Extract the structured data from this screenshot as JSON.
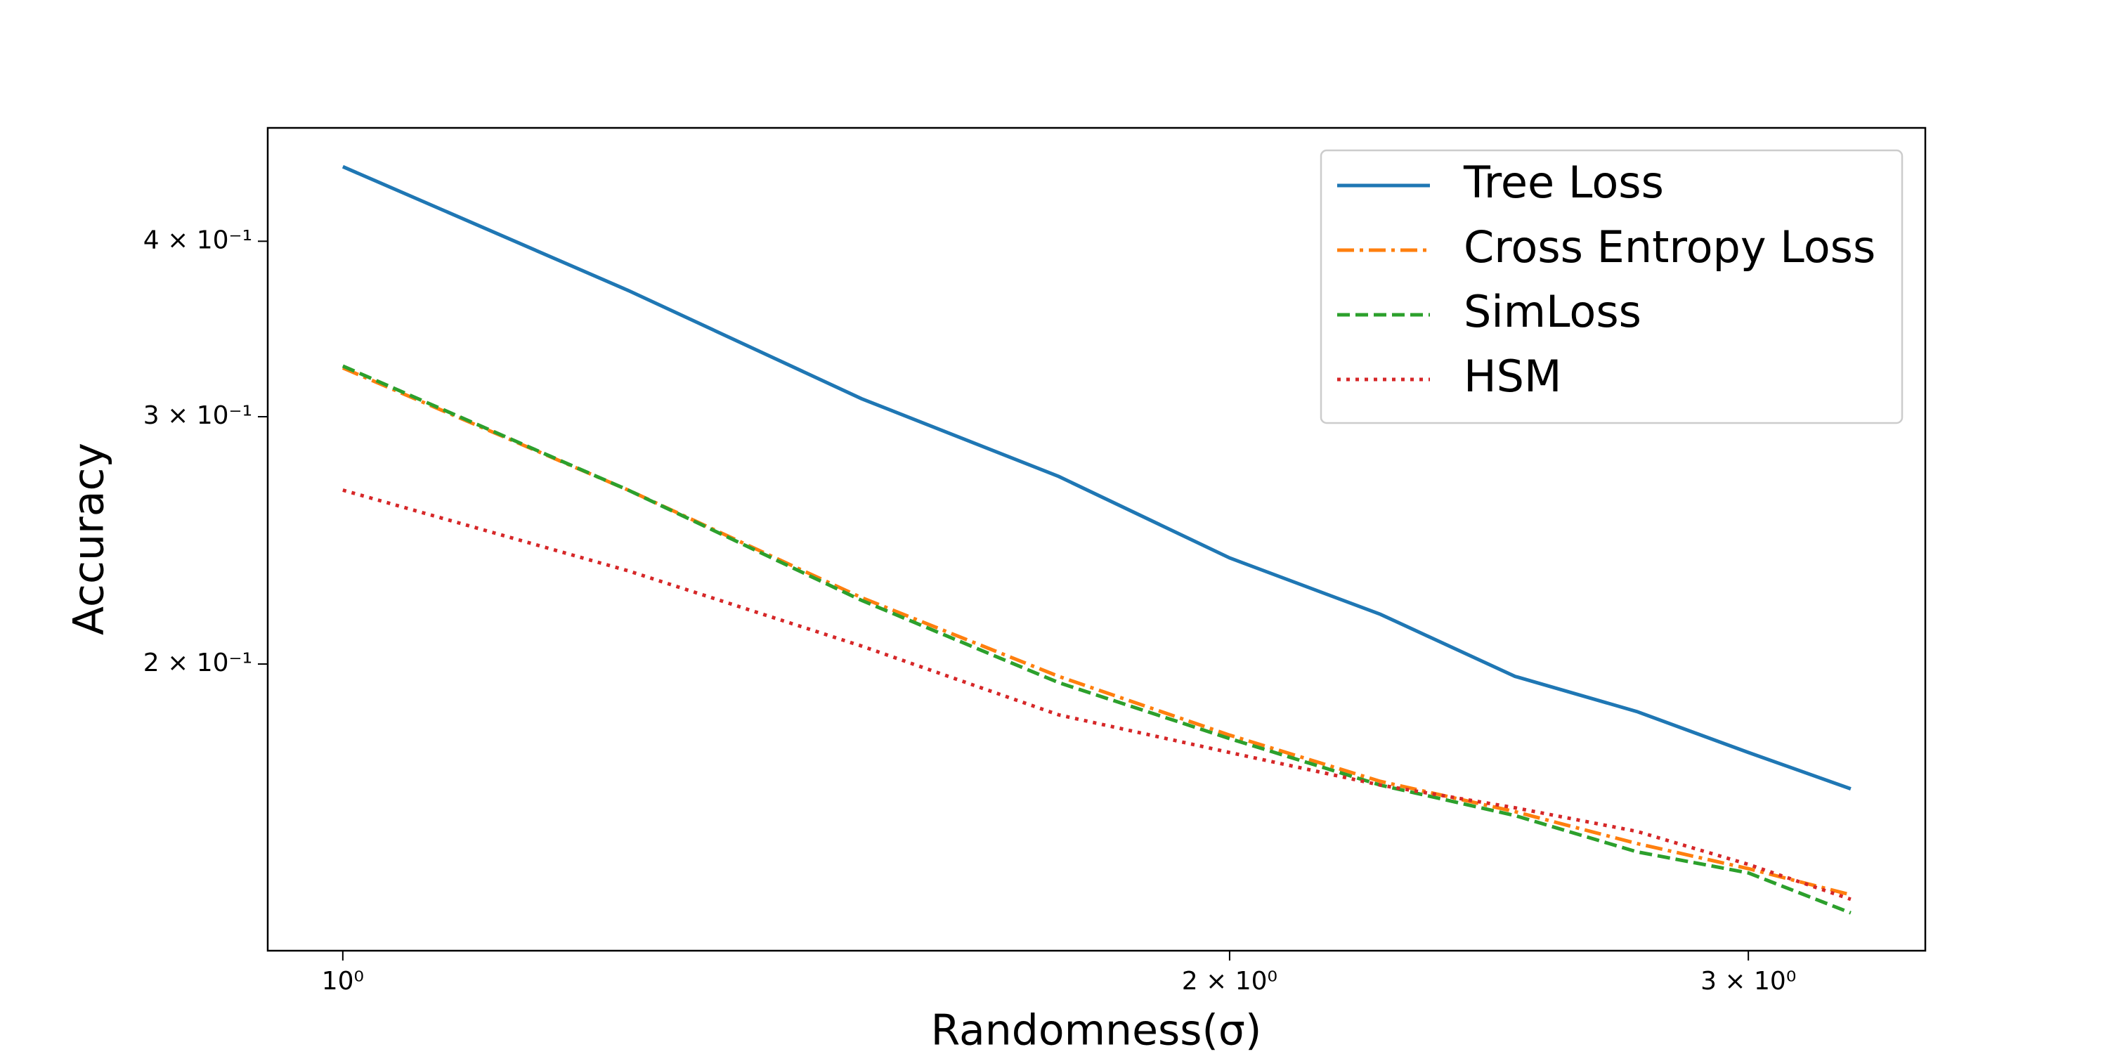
{
  "chart_data": {
    "type": "line",
    "xlabel": "Randomness(σ)",
    "ylabel": "Accuracy",
    "xscale": "log",
    "yscale": "log",
    "x": [
      1.0,
      1.25,
      1.5,
      1.75,
      2.0,
      2.25,
      2.5,
      2.75,
      3.0,
      3.25
    ],
    "series": [
      {
        "name": "Tree Loss",
        "color": "#1f77b4",
        "style": "solid",
        "values": [
          0.452,
          0.369,
          0.309,
          0.272,
          0.238,
          0.217,
          0.196,
          0.185,
          0.173,
          0.163
        ]
      },
      {
        "name": "Cross Entropy Loss",
        "color": "#ff7f0e",
        "style": "dashdot",
        "values": [
          0.325,
          0.266,
          0.223,
          0.196,
          0.178,
          0.165,
          0.157,
          0.149,
          0.143,
          0.137
        ]
      },
      {
        "name": "SimLoss",
        "color": "#2ca02c",
        "style": "dashed",
        "values": [
          0.326,
          0.266,
          0.222,
          0.194,
          0.177,
          0.164,
          0.156,
          0.147,
          0.142,
          0.133
        ]
      },
      {
        "name": "HSM",
        "color": "#d62728",
        "style": "dotted",
        "values": [
          0.266,
          0.233,
          0.206,
          0.184,
          0.173,
          0.164,
          0.158,
          0.152,
          0.144,
          0.136
        ]
      }
    ],
    "xlim": [
      0.943,
      3.445
    ],
    "ylim": [
      0.125,
      0.4817
    ],
    "xticks": [
      {
        "value": 1,
        "label": "10⁰"
      },
      {
        "value": 2,
        "label": "2 × 10⁰"
      },
      {
        "value": 3,
        "label": "3 × 10⁰"
      }
    ],
    "yticks": [
      {
        "value": 0.2,
        "label": "2 × 10⁻¹"
      },
      {
        "value": 0.3,
        "label": "3 × 10⁻¹"
      },
      {
        "value": 0.4,
        "label": "4 × 10⁻¹"
      }
    ],
    "legend": "upper right"
  }
}
